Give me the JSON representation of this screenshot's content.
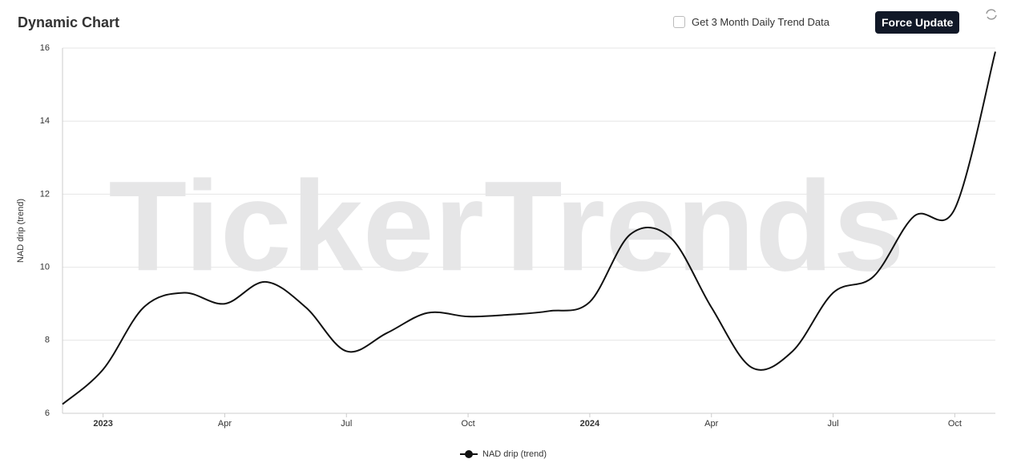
{
  "header": {
    "title": "Dynamic Chart",
    "checkbox_label": "Get 3 Month Daily Trend Data",
    "button": "Force Update"
  },
  "watermark": "TickerTrends",
  "chart_data": {
    "type": "line",
    "y_label": "NAD drip  (trend)",
    "x": [
      "2022-12",
      "2023-01",
      "2023-02",
      "2023-03",
      "2023-04",
      "2023-05",
      "2023-06",
      "2023-07",
      "2023-08",
      "2023-09",
      "2023-10",
      "2023-11",
      "2023-12",
      "2024-01",
      "2024-02",
      "2024-03",
      "2024-04",
      "2024-05",
      "2024-06",
      "2024-07",
      "2024-08",
      "2024-09",
      "2024-10",
      "2024-11"
    ],
    "series": [
      {
        "name": "NAD drip  (trend)",
        "color": "#111111",
        "values": [
          6.25,
          7.2,
          8.9,
          9.3,
          9.0,
          9.6,
          8.9,
          7.7,
          8.2,
          8.75,
          8.65,
          8.7,
          8.8,
          9.05,
          10.9,
          10.8,
          8.9,
          7.25,
          7.7,
          9.3,
          9.75,
          11.4,
          11.6,
          15.9
        ]
      }
    ],
    "xlim": [
      "2022-12",
      "2024-11"
    ],
    "xticks": [
      {
        "value": "2023-01",
        "label": "2023"
      },
      {
        "value": "2023-04",
        "label": "Apr"
      },
      {
        "value": "2023-07",
        "label": "Jul"
      },
      {
        "value": "2023-10",
        "label": "Oct"
      },
      {
        "value": "2024-01",
        "label": "2024"
      },
      {
        "value": "2024-04",
        "label": "Apr"
      },
      {
        "value": "2024-07",
        "label": "Jul"
      },
      {
        "value": "2024-10",
        "label": "Oct"
      }
    ],
    "ylim": [
      6,
      16
    ],
    "yticks": [
      6,
      8,
      10,
      12,
      14,
      16
    ],
    "grid": true
  }
}
